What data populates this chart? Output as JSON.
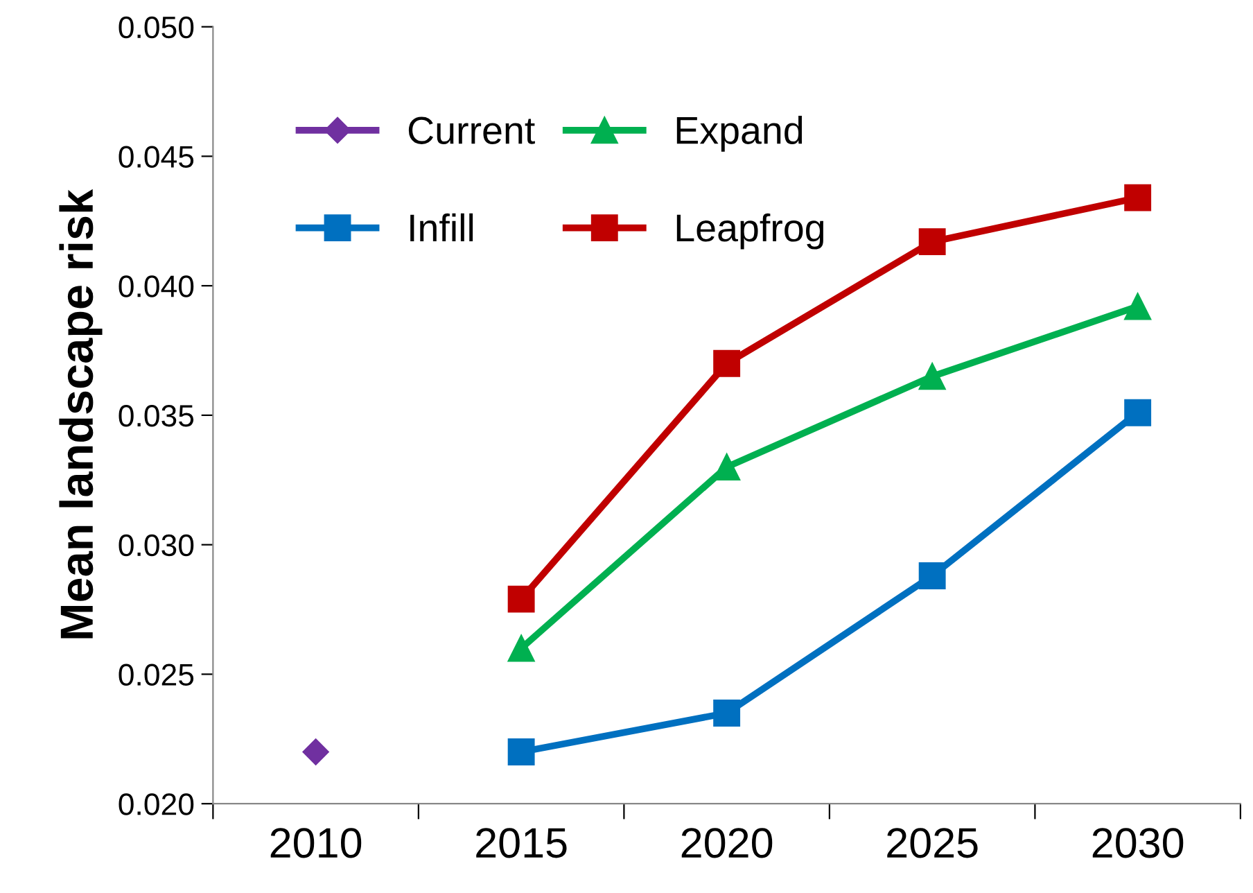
{
  "chart_data": {
    "type": "line",
    "ylabel": "Mean landscape risk",
    "categories": [
      "2010",
      "2015",
      "2020",
      "2025",
      "2030"
    ],
    "ylim": [
      0.02,
      0.05
    ],
    "yticks": [
      {
        "value": 0.02,
        "label": "0.020"
      },
      {
        "value": 0.025,
        "label": "0.025"
      },
      {
        "value": 0.03,
        "label": "0.030"
      },
      {
        "value": 0.035,
        "label": "0.035"
      },
      {
        "value": 0.04,
        "label": "0.040"
      },
      {
        "value": 0.045,
        "label": "0.045"
      },
      {
        "value": 0.05,
        "label": "0.050"
      }
    ],
    "grid": false,
    "legend": "top left",
    "series": [
      {
        "name": "Current",
        "color": "#7030a0",
        "marker": "diamond",
        "values": [
          0.022,
          null,
          null,
          null,
          null
        ]
      },
      {
        "name": "Infill",
        "color": "#0070c0",
        "marker": "square",
        "values": [
          null,
          0.022,
          0.0235,
          0.0288,
          0.0351
        ]
      },
      {
        "name": "Expand",
        "color": "#00b050",
        "marker": "triangle",
        "values": [
          null,
          0.026,
          0.033,
          0.0365,
          0.0392
        ]
      },
      {
        "name": "Leapfrog",
        "color": "#c00000",
        "marker": "square",
        "values": [
          null,
          0.0279,
          0.037,
          0.0417,
          0.0434
        ]
      }
    ]
  }
}
